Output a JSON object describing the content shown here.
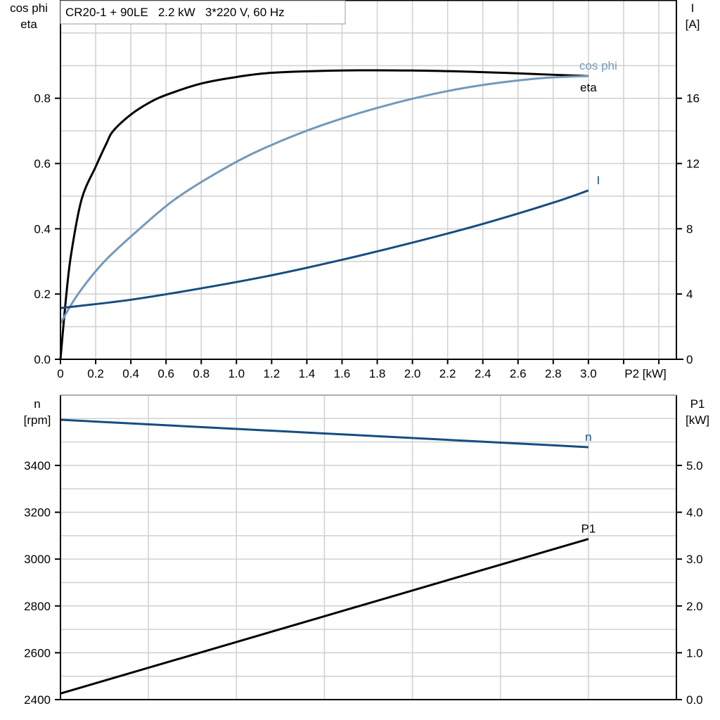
{
  "chart_data": [
    {
      "type": "line",
      "title": "CR20-1 + 90LE   2.2 kW   3*220 V, 60 Hz",
      "xlabel": "P2 [kW]",
      "ylabel_left": [
        "cos phi",
        "eta"
      ],
      "ylabel_right": [
        "I",
        "[A]"
      ],
      "xlim": [
        0,
        3.5
      ],
      "ylim_left": [
        0,
        1.1
      ],
      "ylim_right": [
        0,
        22
      ],
      "x_ticks": [
        "0",
        "0.2",
        "0.4",
        "0.6",
        "0.8",
        "1.0",
        "1.2",
        "1.4",
        "1.6",
        "1.8",
        "2.0",
        "2.2",
        "2.4",
        "2.6",
        "2.8",
        "3.0"
      ],
      "y_left_ticks": [
        "0.0",
        "0.2",
        "0.4",
        "0.6",
        "0.8"
      ],
      "y_right_ticks": [
        "0",
        "4",
        "8",
        "12",
        "16"
      ],
      "grid": true,
      "series": [
        {
          "name": "eta",
          "axis": "left",
          "color": "#000000",
          "x": [
            0,
            0.03,
            0.06,
            0.12,
            0.2,
            0.26,
            0.3,
            0.4,
            0.5,
            0.6,
            0.8,
            1.0,
            1.2,
            1.6,
            2.0,
            2.4,
            2.8,
            3.0
          ],
          "y": [
            0,
            0.18,
            0.32,
            0.49,
            0.59,
            0.66,
            0.7,
            0.75,
            0.785,
            0.81,
            0.845,
            0.865,
            0.878,
            0.885,
            0.885,
            0.88,
            0.872,
            0.868
          ]
        },
        {
          "name": "cos phi",
          "axis": "left",
          "color": "#7399bb",
          "x": [
            0,
            0.1,
            0.25,
            0.45,
            0.65,
            0.9,
            1.15,
            1.5,
            1.9,
            2.3,
            2.7,
            3.0
          ],
          "y": [
            0.11,
            0.2,
            0.3,
            0.4,
            0.49,
            0.575,
            0.645,
            0.72,
            0.785,
            0.832,
            0.86,
            0.868
          ]
        },
        {
          "name": "I",
          "axis": "right",
          "color": "#154d80",
          "x": [
            0,
            0.4,
            0.8,
            1.2,
            1.6,
            2.0,
            2.4,
            2.8,
            3.0
          ],
          "y": [
            3.14,
            3.65,
            4.35,
            5.15,
            6.1,
            7.15,
            8.3,
            9.6,
            10.35
          ]
        }
      ]
    },
    {
      "type": "line",
      "ylabel_left": [
        "n",
        "[rpm]"
      ],
      "ylabel_right": [
        "P1",
        "[kW]"
      ],
      "xlim": [
        0,
        3.5
      ],
      "ylim_left": [
        2400,
        3700
      ],
      "ylim_right": [
        0,
        6.5
      ],
      "y_left_ticks": [
        "2400",
        "2600",
        "2800",
        "3000",
        "3200",
        "3400"
      ],
      "y_right_ticks": [
        "0.0",
        "1.0",
        "2.0",
        "3.0",
        "4.0",
        "5.0"
      ],
      "grid": true,
      "series": [
        {
          "name": "n",
          "axis": "left",
          "color": "#154d80",
          "x": [
            0,
            3.0
          ],
          "y": [
            3595,
            3478
          ]
        },
        {
          "name": "P1",
          "axis": "right",
          "color": "#000000",
          "x": [
            0,
            3.0
          ],
          "y": [
            0.13,
            3.43
          ]
        }
      ]
    }
  ]
}
